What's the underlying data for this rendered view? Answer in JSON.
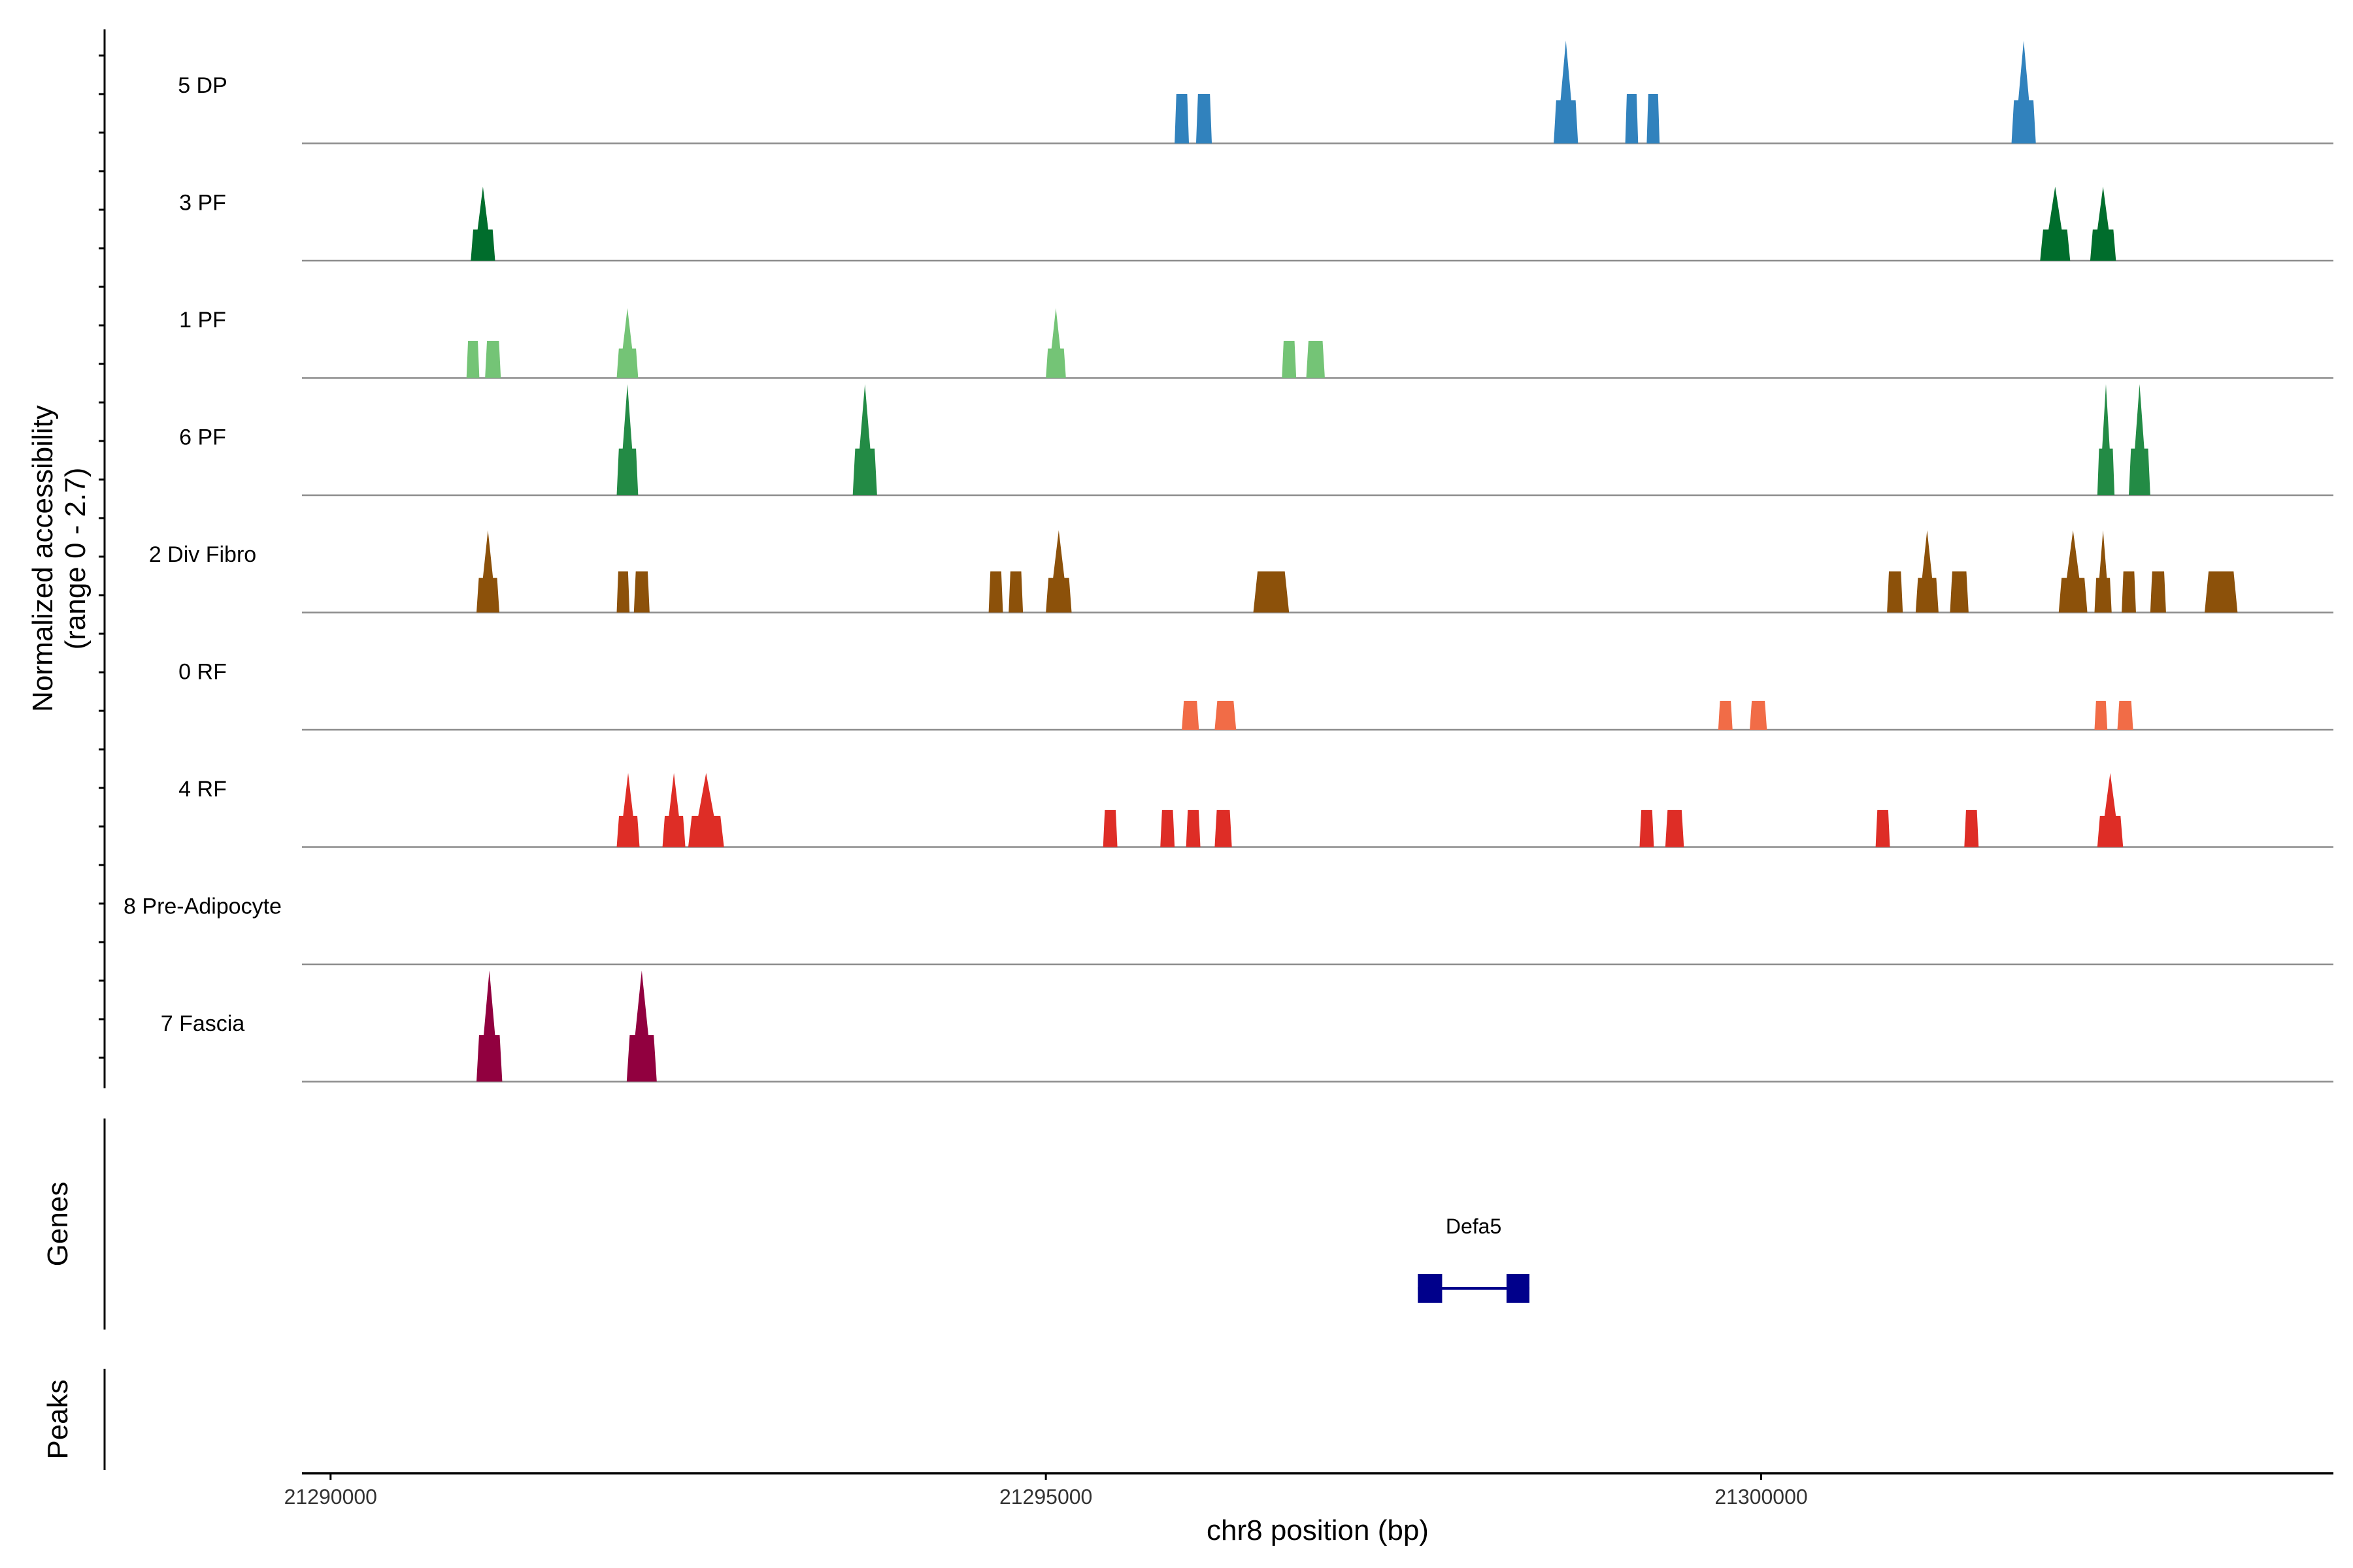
{
  "chart_data": {
    "type": "area",
    "xlabel": "chr8 position (bp)",
    "ylabel": "Normalized accessibility",
    "ylabel_range": "(range 0 - 2.7)",
    "ylim": [
      0,
      2.7
    ],
    "xlim": [
      21289800,
      21304000
    ],
    "x_ticks": [
      21290000,
      21295000,
      21300000
    ],
    "x_tick_labels": [
      "21290000",
      "21295000",
      "21300000"
    ],
    "grid": false,
    "legend": "none",
    "tracks": [
      {
        "name": "5 DP",
        "color": "#3182BD",
        "peaks": [
          [
            21295900,
            21296000,
            1.2
          ],
          [
            21296050,
            21296160,
            1.2
          ],
          [
            21298550,
            21298720,
            2.5
          ],
          [
            21299050,
            21299140,
            1.2
          ],
          [
            21299200,
            21299290,
            1.2
          ],
          [
            21301750,
            21301920,
            2.5
          ]
        ]
      },
      {
        "name": "3 PF",
        "color": "#006D2C",
        "peaks": [
          [
            21290980,
            21291150,
            1.8
          ],
          [
            21301950,
            21302160,
            1.8
          ],
          [
            21302300,
            21302480,
            1.8
          ]
        ]
      },
      {
        "name": "1 PF",
        "color": "#74C476",
        "peaks": [
          [
            21290950,
            21291040,
            0.9
          ],
          [
            21291080,
            21291190,
            0.9
          ],
          [
            21292000,
            21292150,
            1.7
          ],
          [
            21295000,
            21295140,
            1.7
          ],
          [
            21296650,
            21296750,
            0.9
          ],
          [
            21296820,
            21296950,
            0.9
          ]
        ]
      },
      {
        "name": "6 PF",
        "color": "#238B45",
        "peaks": [
          [
            21292000,
            21292150,
            2.7
          ],
          [
            21293650,
            21293820,
            2.7
          ],
          [
            21302350,
            21302470,
            2.7
          ],
          [
            21302570,
            21302720,
            2.7
          ]
        ]
      },
      {
        "name": "2 Div Fibro",
        "color": "#8C510A",
        "peaks": [
          [
            21291020,
            21291180,
            2.0
          ],
          [
            21292000,
            21292090,
            1.0
          ],
          [
            21292120,
            21292230,
            1.0
          ],
          [
            21294600,
            21294700,
            1.0
          ],
          [
            21294740,
            21294840,
            1.0
          ],
          [
            21295000,
            21295180,
            2.0
          ],
          [
            21296450,
            21296700,
            1.0
          ],
          [
            21300880,
            21300990,
            1.0
          ],
          [
            21301080,
            21301240,
            2.0
          ],
          [
            21301320,
            21301450,
            1.0
          ],
          [
            21302080,
            21302280,
            2.0
          ],
          [
            21302330,
            21302450,
            2.0
          ],
          [
            21302520,
            21302620,
            1.0
          ],
          [
            21302720,
            21302830,
            1.0
          ],
          [
            21303100,
            21303330,
            1.0
          ]
        ]
      },
      {
        "name": "0 RF",
        "color": "#F16C47",
        "peaks": [
          [
            21295950,
            21296070,
            0.7
          ],
          [
            21296180,
            21296330,
            0.7
          ],
          [
            21299700,
            21299800,
            0.7
          ],
          [
            21299920,
            21300040,
            0.7
          ],
          [
            21302330,
            21302420,
            0.7
          ],
          [
            21302490,
            21302600,
            0.7
          ]
        ]
      },
      {
        "name": "4 RF",
        "color": "#DE2D26",
        "peaks": [
          [
            21292000,
            21292160,
            1.8
          ],
          [
            21292320,
            21292480,
            1.8
          ],
          [
            21292500,
            21292750,
            1.8
          ],
          [
            21295400,
            21295500,
            0.9
          ],
          [
            21295800,
            21295900,
            0.9
          ],
          [
            21295980,
            21296080,
            0.9
          ],
          [
            21296180,
            21296300,
            0.9
          ],
          [
            21299150,
            21299250,
            0.9
          ],
          [
            21299330,
            21299460,
            0.9
          ],
          [
            21300800,
            21300900,
            0.9
          ],
          [
            21301420,
            21301520,
            0.9
          ],
          [
            21302350,
            21302530,
            1.8
          ]
        ]
      },
      {
        "name": "8 Pre-Adipocyte",
        "color": "#7B3294",
        "peaks": []
      },
      {
        "name": "7 Fascia",
        "color": "#91003F",
        "peaks": [
          [
            21291020,
            21291200,
            2.7
          ],
          [
            21292070,
            21292280,
            2.7
          ]
        ]
      }
    ],
    "genes": [
      {
        "name": "Defa5",
        "color": "#00008B",
        "start": 21297600,
        "end": 21298380,
        "exons": [
          [
            21297600,
            21297770
          ],
          [
            21298220,
            21298380
          ]
        ]
      }
    ],
    "genes_panel_label": "Genes",
    "peaks_panel_label": "Peaks"
  }
}
